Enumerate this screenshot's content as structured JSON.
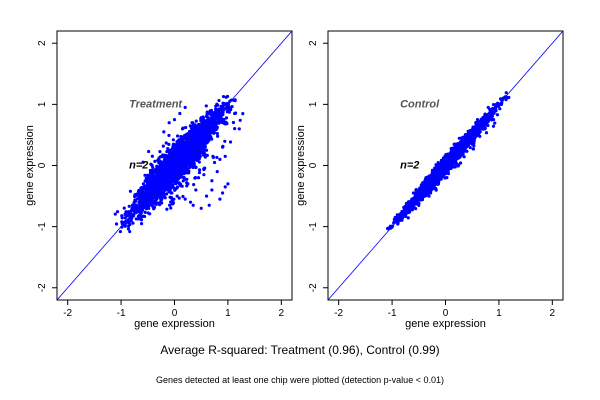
{
  "caption": "Average R-squared: Treatment (0.96), Control (0.99)",
  "footnote": "Genes detected at least one chip were plotted (detection p-value < 0.01)",
  "colors": {
    "points": "#0000ff",
    "diagonal": "#0000ff",
    "axes": "#000000"
  },
  "chart_data": [
    {
      "type": "scatter",
      "label": "Treatment",
      "n_label": "n=2",
      "xlabel": "gene expression",
      "ylabel": "gene expression",
      "xlim": [
        -2.2,
        2.2
      ],
      "ylim": [
        -2.2,
        2.2
      ],
      "xticks": [
        -2,
        -1,
        0,
        1,
        2
      ],
      "yticks": [
        -2,
        -1,
        0,
        1,
        2
      ],
      "reference_line": "y = x",
      "point_cloud": {
        "range": [
          -1.15,
          1.25
        ],
        "spread": 0.09,
        "count": 2600,
        "outlier_count": 120
      },
      "outliers": [
        [
          0.2,
          -0.55
        ],
        [
          0.3,
          -0.6
        ],
        [
          0.5,
          -0.7
        ],
        [
          0.9,
          -0.45
        ],
        [
          1.0,
          -0.3
        ],
        [
          0.95,
          -0.35
        ],
        [
          0.8,
          -0.1
        ],
        [
          0.9,
          0.3
        ],
        [
          0.85,
          0.1
        ],
        [
          0.7,
          -0.25
        ],
        [
          0.6,
          -0.5
        ],
        [
          0.4,
          -0.4
        ],
        [
          0.55,
          -0.15
        ],
        [
          0.25,
          -0.3
        ],
        [
          0.75,
          0.05
        ],
        [
          0.95,
          0.15
        ],
        [
          0.6,
          0.25
        ],
        [
          0.45,
          -0.2
        ],
        [
          0.1,
          0.85
        ],
        [
          0.0,
          0.75
        ],
        [
          -0.1,
          0.7
        ],
        [
          0.2,
          0.95
        ],
        [
          0.15,
          0.6
        ],
        [
          -0.2,
          0.55
        ],
        [
          -0.05,
          -0.45
        ],
        [
          0.05,
          -0.5
        ],
        [
          0.35,
          -0.65
        ],
        [
          0.65,
          -0.65
        ],
        [
          0.85,
          -0.55
        ],
        [
          0.7,
          -0.4
        ]
      ]
    },
    {
      "type": "scatter",
      "label": "Control",
      "n_label": "n=2",
      "xlabel": "gene expression",
      "ylabel": "gene expression",
      "xlim": [
        -2.2,
        2.2
      ],
      "ylim": [
        -2.2,
        2.2
      ],
      "xticks": [
        -2,
        -1,
        0,
        1,
        2
      ],
      "yticks": [
        -2,
        -1,
        0,
        1,
        2
      ],
      "reference_line": "y = x",
      "point_cloud": {
        "range": [
          -1.15,
          1.25
        ],
        "spread": 0.035,
        "count": 2600,
        "outlier_count": 30
      },
      "outliers": [
        [
          0.3,
          0.45
        ],
        [
          0.6,
          0.75
        ],
        [
          0.2,
          0.35
        ],
        [
          -0.2,
          -0.05
        ],
        [
          0.8,
          0.95
        ],
        [
          0.5,
          0.35
        ],
        [
          -0.4,
          -0.5
        ],
        [
          0.1,
          -0.05
        ],
        [
          0.9,
          0.75
        ],
        [
          -0.6,
          -0.45
        ]
      ]
    }
  ]
}
